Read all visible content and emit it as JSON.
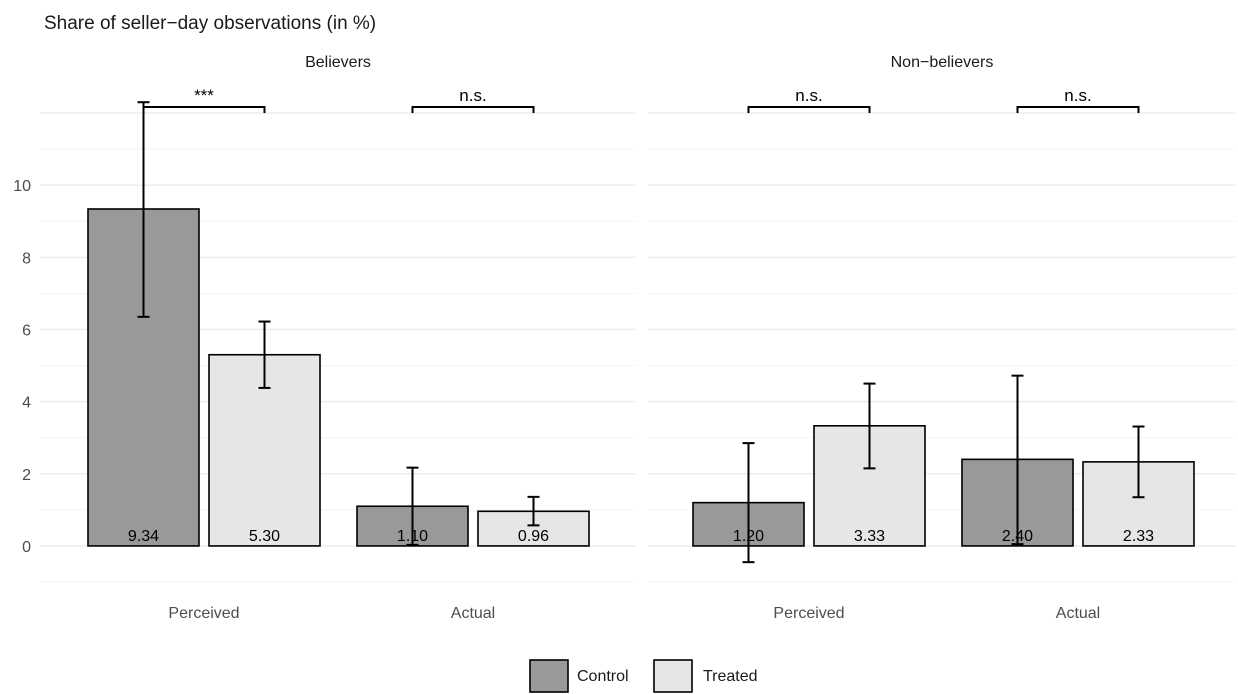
{
  "chart_data": {
    "type": "bar",
    "title": "Share of seller−day observations (in %)",
    "ylim": [
      -1,
      12.5
    ],
    "y_ticks": [
      0,
      2,
      4,
      6,
      8,
      10
    ],
    "grid": true,
    "legend_position": "bottom",
    "legend": [
      {
        "name": "Control",
        "color": "#999999"
      },
      {
        "name": "Treated",
        "color": "#e6e6e6"
      }
    ],
    "facets": [
      {
        "name": "Believers",
        "categories": [
          "Perceived",
          "Actual"
        ],
        "series": [
          {
            "name": "Control",
            "values": [
              9.34,
              1.1
            ],
            "labels": [
              "9.34",
              "1.10"
            ],
            "err_low": [
              6.35,
              0.03
            ],
            "err_high": [
              12.3,
              2.17
            ]
          },
          {
            "name": "Treated",
            "values": [
              5.3,
              0.96
            ],
            "labels": [
              "5.30",
              "0.96"
            ],
            "err_low": [
              4.38,
              0.57
            ],
            "err_high": [
              6.22,
              1.36
            ]
          }
        ],
        "significance": [
          "***",
          "n.s."
        ]
      },
      {
        "name": "Non−believers",
        "categories": [
          "Perceived",
          "Actual"
        ],
        "series": [
          {
            "name": "Control",
            "values": [
              1.2,
              2.4
            ],
            "labels": [
              "1.20",
              "2.40"
            ],
            "err_low": [
              -0.45,
              0.05
            ],
            "err_high": [
              2.85,
              4.72
            ]
          },
          {
            "name": "Treated",
            "values": [
              3.33,
              2.33
            ],
            "labels": [
              "3.33",
              "2.33"
            ],
            "err_low": [
              2.15,
              1.35
            ],
            "err_high": [
              4.5,
              3.31
            ]
          }
        ],
        "significance": [
          "n.s.",
          "n.s."
        ]
      }
    ]
  }
}
